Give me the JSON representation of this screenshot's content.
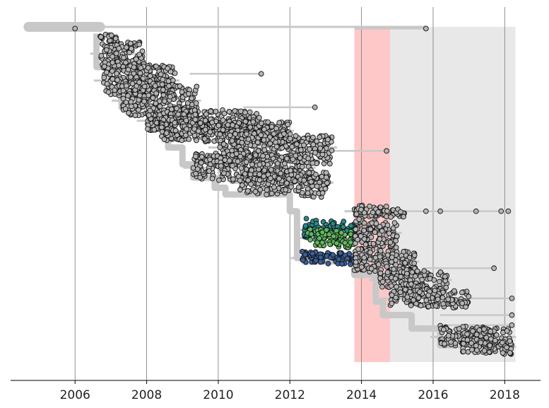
{
  "chart_data": {
    "type": "scatter",
    "title": "",
    "xlabel": "",
    "ylabel": "",
    "xlim": [
      2004.2,
      2019.0
    ],
    "x_ticks": [
      2006,
      2008,
      2010,
      2012,
      2014,
      2016,
      2018
    ],
    "x_tick_labels": [
      "2006",
      "2008",
      "2010",
      "2012",
      "2014",
      "2016",
      "2018"
    ],
    "grid": "vertical",
    "y_axis_visible": false,
    "shaded_regions": [
      {
        "x_start": 2013.8,
        "x_end": 2014.8,
        "color": "#ffc8c8"
      },
      {
        "x_start": 2014.8,
        "x_end": 2018.3,
        "color": "#e8e8e8"
      }
    ],
    "colors": {
      "tip": "#b4b4b4",
      "tip_outline": "#111111",
      "branch": "#c8c8c8",
      "highlight_teal": "#2a8a8a",
      "highlight_green": "#5fb85f",
      "highlight_blue": "#3a5f9a"
    },
    "clades": [
      {
        "x_start": 2006.7,
        "x_end": 2007.9,
        "y_top": 0.02,
        "y_bot": 0.14,
        "color": "tip"
      },
      {
        "x_start": 2006.8,
        "x_end": 2008.8,
        "y_top": 0.1,
        "y_bot": 0.22,
        "color": "tip"
      },
      {
        "x_start": 2007.3,
        "x_end": 2009.4,
        "y_top": 0.16,
        "y_bot": 0.28,
        "color": "tip"
      },
      {
        "x_start": 2008.0,
        "x_end": 2011.2,
        "y_top": 0.24,
        "y_bot": 0.32,
        "color": "tip"
      },
      {
        "x_start": 2008.4,
        "x_end": 2012.0,
        "y_top": 0.27,
        "y_bot": 0.35,
        "color": "tip"
      },
      {
        "x_start": 2010.0,
        "x_end": 2013.2,
        "y_top": 0.31,
        "y_bot": 0.41,
        "color": "tip"
      },
      {
        "x_start": 2009.3,
        "x_end": 2012.6,
        "y_top": 0.37,
        "y_bot": 0.47,
        "color": "tip"
      },
      {
        "x_start": 2010.6,
        "x_end": 2013.1,
        "y_top": 0.42,
        "y_bot": 0.51,
        "color": "tip"
      },
      {
        "x_start": 2012.4,
        "x_end": 2013.8,
        "y_top": 0.57,
        "y_bot": 0.64,
        "color": "highlight_teal"
      },
      {
        "x_start": 2012.5,
        "x_end": 2013.8,
        "y_top": 0.6,
        "y_bot": 0.66,
        "color": "highlight_green"
      },
      {
        "x_start": 2012.3,
        "x_end": 2013.8,
        "y_top": 0.67,
        "y_bot": 0.71,
        "color": "highlight_blue"
      },
      {
        "x_start": 2013.8,
        "x_end": 2015.2,
        "y_top": 0.53,
        "y_bot": 0.57,
        "color": "tip"
      },
      {
        "x_start": 2013.8,
        "x_end": 2015.0,
        "y_top": 0.57,
        "y_bot": 0.66,
        "color": "tip"
      },
      {
        "x_start": 2013.8,
        "x_end": 2015.5,
        "y_top": 0.66,
        "y_bot": 0.74,
        "color": "tip"
      },
      {
        "x_start": 2014.5,
        "x_end": 2016.4,
        "y_top": 0.72,
        "y_bot": 0.79,
        "color": "tip"
      },
      {
        "x_start": 2014.8,
        "x_end": 2017.0,
        "y_top": 0.78,
        "y_bot": 0.84,
        "color": "tip"
      },
      {
        "x_start": 2016.2,
        "x_end": 2018.2,
        "y_top": 0.89,
        "y_bot": 0.96,
        "color": "tip"
      },
      {
        "x_start": 2016.8,
        "x_end": 2018.2,
        "y_top": 0.93,
        "y_bot": 0.98,
        "color": "tip"
      }
    ],
    "outlier_tips": [
      {
        "x": 2006.0,
        "y": 0.005
      },
      {
        "x": 2015.8,
        "y": 0.005
      },
      {
        "x": 2011.2,
        "y": 0.14
      },
      {
        "x": 2012.7,
        "y": 0.24
      },
      {
        "x": 2014.7,
        "y": 0.37
      },
      {
        "x": 2015.8,
        "y": 0.55
      },
      {
        "x": 2016.2,
        "y": 0.55
      },
      {
        "x": 2017.2,
        "y": 0.55
      },
      {
        "x": 2017.9,
        "y": 0.55
      },
      {
        "x": 2018.1,
        "y": 0.55
      },
      {
        "x": 2017.7,
        "y": 0.72
      },
      {
        "x": 2018.2,
        "y": 0.81
      },
      {
        "x": 2018.2,
        "y": 0.86
      },
      {
        "x": 2018.2,
        "y": 0.89
      }
    ]
  }
}
